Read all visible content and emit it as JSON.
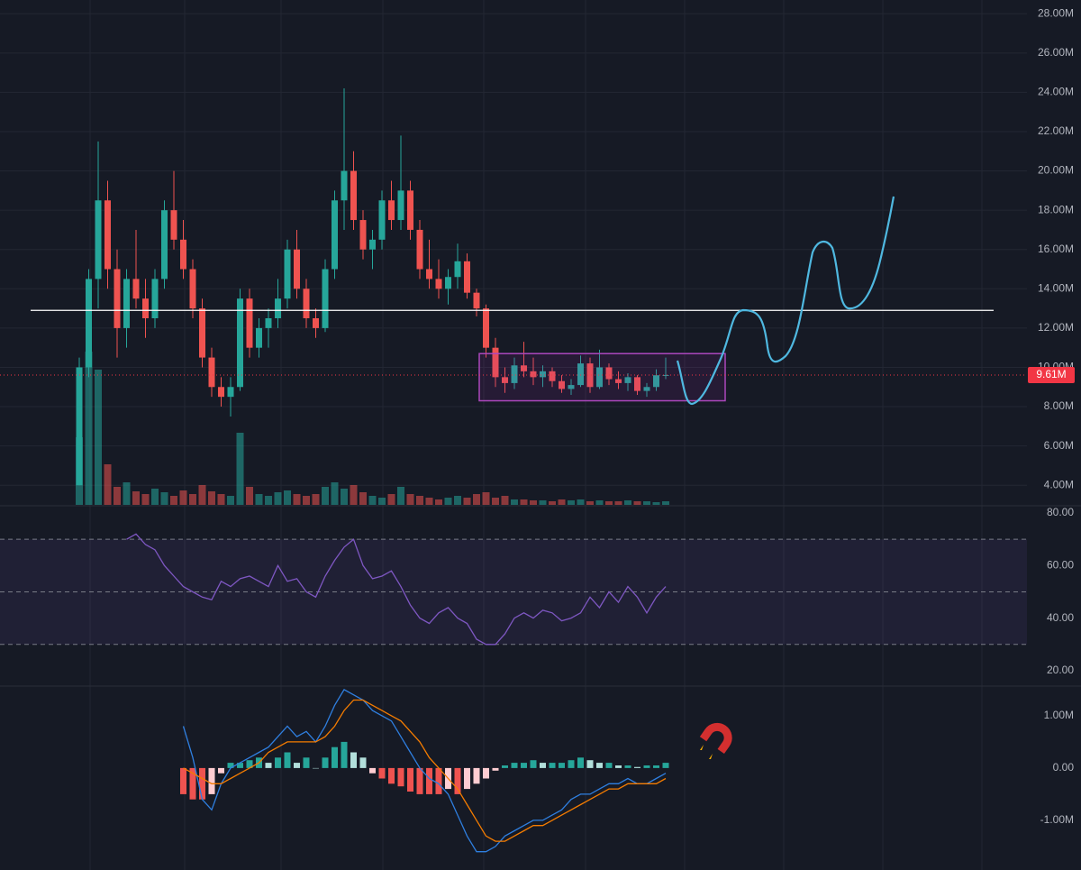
{
  "chart_data": [
    {
      "type": "candlestick",
      "open": [
        4.0,
        10,
        14.5,
        18.5,
        15,
        12,
        14.5,
        13.5,
        12.5,
        14.5,
        18,
        16.5,
        15,
        13,
        10.5,
        9,
        8.5,
        9,
        13.5,
        11,
        12,
        12.5,
        13.5,
        16,
        14,
        12.5,
        12,
        15,
        18.5,
        20,
        17.5,
        16,
        16.5,
        18.5,
        17.5,
        19,
        17,
        15,
        14.5,
        14,
        14.6,
        15.4,
        13.8,
        13,
        11,
        9.5,
        9.2,
        10.1,
        9.8,
        9.5,
        9.8,
        9.3,
        8.9,
        9.1,
        10.2,
        9,
        10,
        9.4,
        9.2,
        9.5,
        8.8,
        9.0,
        9.6
      ],
      "high": [
        10.5,
        15,
        21.5,
        19.5,
        16,
        15,
        17,
        14.5,
        15,
        18.5,
        20,
        17.5,
        15.5,
        13.5,
        11,
        9.5,
        9.5,
        14,
        14,
        12.5,
        13,
        14.5,
        16.5,
        17,
        14.5,
        13,
        15.5,
        19,
        24.2,
        21,
        18,
        17,
        19,
        19.5,
        21.8,
        19.5,
        17.5,
        16.5,
        15.5,
        15,
        16.3,
        15.8,
        14,
        13.2,
        11.5,
        10,
        10.5,
        11.3,
        10.5,
        10.1,
        10,
        9.6,
        9.4,
        10.6,
        10.5,
        10.9,
        10.2,
        9.8,
        9.7,
        9.6,
        9.2,
        9.9,
        10.5
      ],
      "low": [
        4.0,
        9.5,
        13,
        14,
        10.5,
        11,
        13,
        11.5,
        12,
        14,
        16,
        14.5,
        12.5,
        10,
        8.5,
        8,
        7.5,
        8.8,
        10.5,
        10.5,
        11,
        12,
        13,
        13.5,
        12,
        11.5,
        11.8,
        14.5,
        17,
        17,
        15.5,
        15,
        16,
        17,
        17,
        16.5,
        14.5,
        14,
        13.5,
        13.2,
        14,
        13.5,
        12.6,
        10.5,
        9,
        8.7,
        8.9,
        9.5,
        9.1,
        9,
        9,
        8.7,
        8.6,
        9,
        8.7,
        8.9,
        9.1,
        8.9,
        8.8,
        8.6,
        8.5,
        8.8,
        9.4
      ],
      "close": [
        10,
        14.5,
        18.5,
        15,
        12,
        14.5,
        13.5,
        12.5,
        14.5,
        18,
        16.5,
        15,
        13,
        10.5,
        9,
        8.5,
        9,
        13.5,
        11,
        12,
        12.5,
        13.5,
        16,
        14,
        12.5,
        12,
        15,
        18.5,
        20,
        17.5,
        16,
        16.5,
        18.5,
        17.5,
        19,
        17,
        15,
        14.5,
        14,
        14.6,
        15.4,
        13.8,
        13,
        11,
        9.5,
        9.2,
        10.1,
        9.8,
        9.5,
        9.8,
        9.3,
        8.9,
        9.1,
        10.2,
        9,
        10,
        9.4,
        9.2,
        9.5,
        8.8,
        9.0,
        9.6,
        9.61
      ],
      "colors": {
        "up": "#26a69a",
        "down": "#ef5350"
      },
      "ylim": [
        3.0,
        28.7
      ],
      "yticks": [
        {
          "value": 4,
          "label": "4.00M"
        },
        {
          "value": 6,
          "label": "6.00M"
        },
        {
          "value": 8,
          "label": "8.00M"
        },
        {
          "value": 10,
          "label": "10.00M"
        },
        {
          "value": 12,
          "label": "12.00M"
        },
        {
          "value": 14,
          "label": "14.00M"
        },
        {
          "value": 16,
          "label": "16.00M"
        },
        {
          "value": 18,
          "label": "18.00M"
        },
        {
          "value": 20,
          "label": "20.00M"
        },
        {
          "value": 22,
          "label": "22.00M"
        },
        {
          "value": 24,
          "label": "24.00M"
        },
        {
          "value": 26,
          "label": "26.00M"
        },
        {
          "value": 28,
          "label": "28.00M"
        }
      ],
      "grid": true,
      "volume": {
        "values": [
          75,
          170,
          150,
          45,
          20,
          25,
          15,
          12,
          18,
          14,
          10,
          16,
          12,
          22,
          15,
          12,
          10,
          80,
          20,
          12,
          10,
          14,
          16,
          12,
          10,
          12,
          20,
          25,
          18,
          22,
          14,
          10,
          8,
          12,
          20,
          12,
          10,
          8,
          6,
          8,
          10,
          8,
          12,
          14,
          8,
          10,
          6,
          6,
          5,
          5,
          4,
          6,
          5,
          6,
          4,
          5,
          4,
          4,
          5,
          4,
          4,
          3,
          4
        ],
        "ylim": [
          0,
          200
        ]
      },
      "last_price": {
        "value": 9.61,
        "label": "9.61M"
      },
      "hline": 12.9,
      "box_range": [
        8.3,
        10.7
      ]
    },
    {
      "type": "line",
      "series": [
        {
          "color": "#7e57c2",
          "values": [
            null,
            null,
            null,
            null,
            null,
            70,
            72,
            68,
            66,
            60,
            56,
            52,
            50,
            48,
            47,
            54,
            52,
            55,
            56,
            54,
            52,
            60,
            54,
            55,
            50,
            48,
            56,
            62,
            67,
            70,
            60,
            55,
            56,
            58,
            52,
            45,
            40,
            38,
            42,
            44,
            40,
            38,
            32,
            30,
            30,
            34,
            40,
            42,
            40,
            43,
            42,
            39,
            40,
            42,
            48,
            44,
            50,
            46,
            52,
            48,
            42,
            48,
            52
          ]
        }
      ],
      "ylim": [
        14.5,
        82.4
      ],
      "yticks": [
        {
          "value": 20,
          "label": "20.00"
        },
        {
          "value": 40,
          "label": "40.00"
        },
        {
          "value": 60,
          "label": "60.00"
        },
        {
          "value": 80,
          "label": "80.00"
        }
      ],
      "band": [
        30,
        70
      ],
      "guides": [
        70,
        50,
        30
      ]
    },
    {
      "type": "macd",
      "series": [
        {
          "color": "#2f7fe0",
          "values": [
            null,
            null,
            null,
            null,
            null,
            null,
            null,
            null,
            null,
            null,
            null,
            0.8,
            0.2,
            -0.6,
            -0.8,
            -0.3,
            0.0,
            0.1,
            0.2,
            0.3,
            0.4,
            0.6,
            0.8,
            0.6,
            0.7,
            0.5,
            0.8,
            1.2,
            1.5,
            1.4,
            1.3,
            1.1,
            1.0,
            0.9,
            0.6,
            0.3,
            0.0,
            -0.2,
            -0.3,
            -0.5,
            -0.9,
            -1.3,
            -1.6,
            -1.6,
            -1.5,
            -1.3,
            -1.2,
            -1.1,
            -1.0,
            -1.0,
            -0.9,
            -0.8,
            -0.6,
            -0.5,
            -0.5,
            -0.4,
            -0.3,
            -0.3,
            -0.2,
            -0.3,
            -0.3,
            -0.2,
            -0.1
          ]
        },
        {
          "color": "#f57c00",
          "values": [
            null,
            null,
            null,
            null,
            null,
            null,
            null,
            null,
            null,
            null,
            null,
            0.0,
            -0.1,
            -0.2,
            -0.3,
            -0.3,
            -0.2,
            -0.1,
            0.0,
            0.1,
            0.3,
            0.4,
            0.5,
            0.5,
            0.5,
            0.5,
            0.6,
            0.8,
            1.1,
            1.3,
            1.3,
            1.2,
            1.1,
            1.0,
            0.9,
            0.7,
            0.5,
            0.2,
            0.0,
            -0.2,
            -0.4,
            -0.7,
            -1.0,
            -1.3,
            -1.4,
            -1.4,
            -1.3,
            -1.2,
            -1.1,
            -1.1,
            -1.0,
            -0.9,
            -0.8,
            -0.7,
            -0.6,
            -0.5,
            -0.4,
            -0.4,
            -0.3,
            -0.3,
            -0.3,
            -0.3,
            -0.2
          ]
        }
      ],
      "histogram": [
        null,
        null,
        null,
        null,
        null,
        null,
        null,
        null,
        null,
        null,
        null,
        -0.5,
        -0.6,
        -0.6,
        -0.5,
        -0.1,
        0.1,
        0.1,
        0.15,
        0.2,
        0.1,
        0.2,
        0.3,
        0.1,
        0.2,
        0.0,
        0.2,
        0.4,
        0.5,
        0.3,
        0.2,
        -0.1,
        -0.2,
        -0.3,
        -0.35,
        -0.45,
        -0.5,
        -0.5,
        -0.5,
        -0.4,
        -0.5,
        -0.4,
        -0.3,
        -0.2,
        -0.05,
        0.05,
        0.1,
        0.1,
        0.15,
        0.1,
        0.1,
        0.1,
        0.15,
        0.2,
        0.15,
        0.1,
        0.1,
        0.05,
        0.05,
        0.02,
        0.05,
        0.05,
        0.1
      ],
      "ylim": [
        -1.95,
        1.55
      ],
      "yticks": [
        {
          "value": -1,
          "label": "-1.00M"
        },
        {
          "value": 0,
          "label": "0.00"
        },
        {
          "value": 1,
          "label": "1.00M"
        }
      ]
    }
  ]
}
